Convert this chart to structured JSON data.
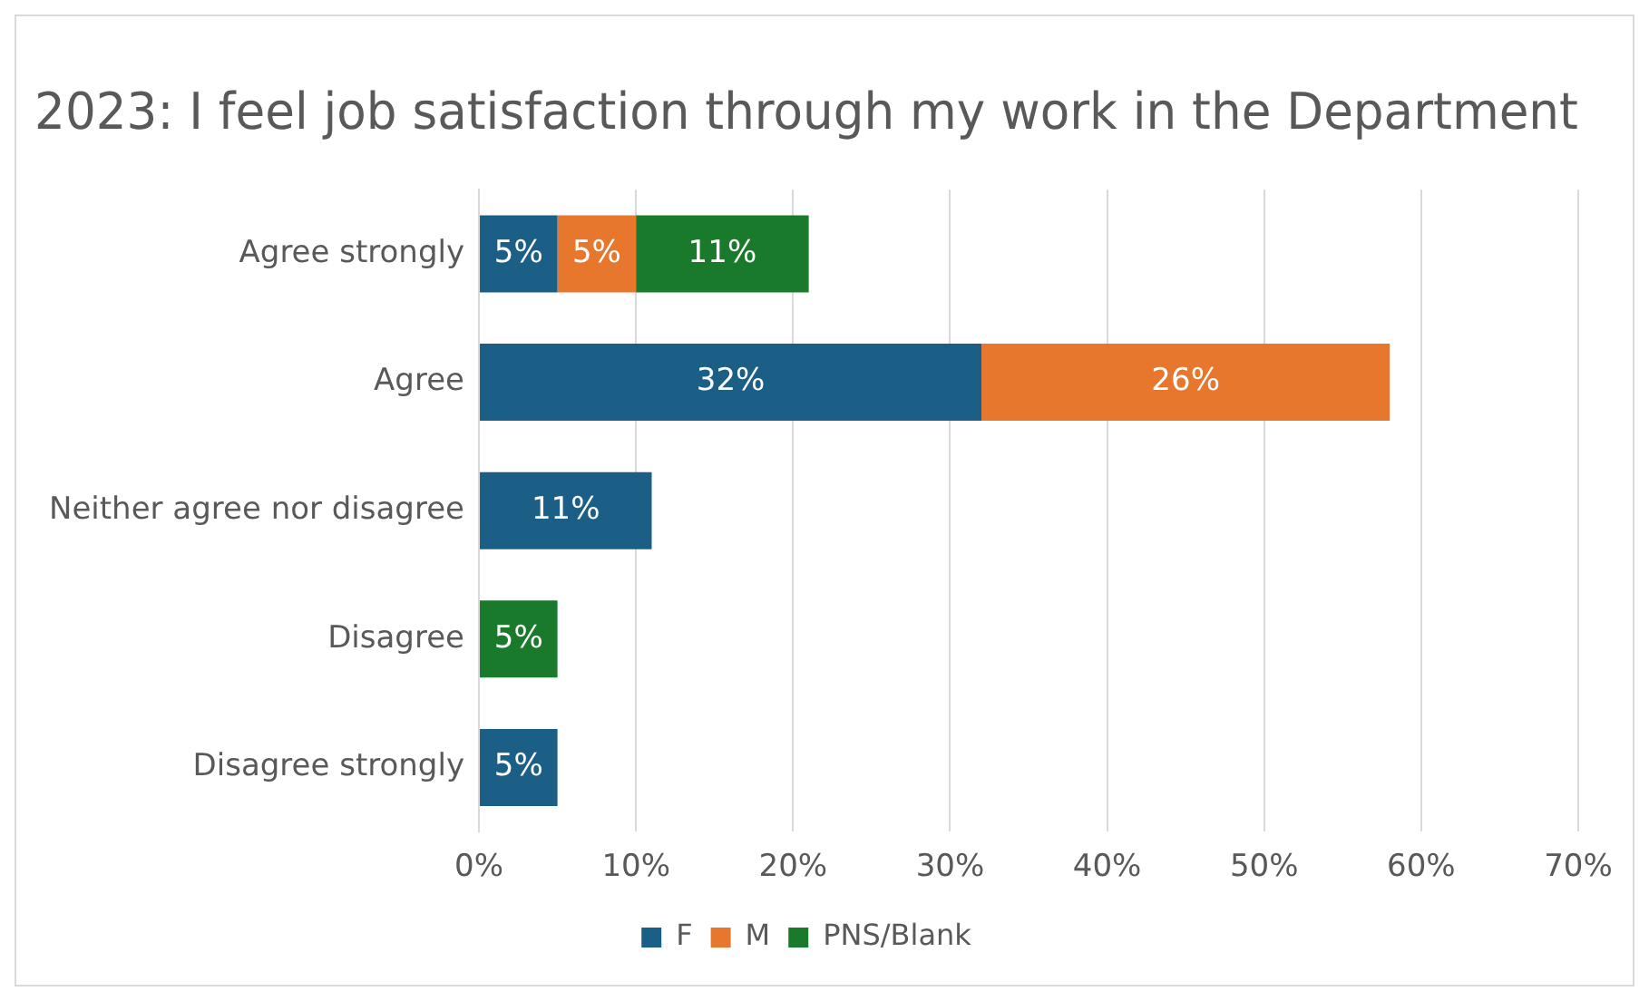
{
  "chart_data": {
    "type": "bar",
    "title": "2023: I feel job satisfaction through my work in the Department",
    "orientation": "horizontal",
    "stacked": true,
    "categories": [
      "Agree strongly",
      "Agree",
      "Neither agree nor disagree",
      "Disagree",
      "Disagree strongly"
    ],
    "series": [
      {
        "name": "F",
        "color": "#1b5e86",
        "values": [
          5,
          32,
          11,
          null,
          5
        ],
        "value_labels": [
          "5%",
          "32%",
          "11%",
          null,
          "5%"
        ]
      },
      {
        "name": "M",
        "color": "#e8772e",
        "values": [
          5,
          26,
          null,
          null,
          null
        ],
        "value_labels": [
          "5%",
          "26%",
          null,
          null,
          null
        ]
      },
      {
        "name": "PNS/Blank",
        "color": "#1a7a2c",
        "values": [
          11,
          null,
          null,
          5,
          null
        ],
        "value_labels": [
          "11%",
          null,
          null,
          "5%",
          null
        ]
      }
    ],
    "xlim": [
      0,
      70
    ],
    "xticks": [
      {
        "value": 0,
        "label": "0%"
      },
      {
        "value": 10,
        "label": "10%"
      },
      {
        "value": 20,
        "label": "20%"
      },
      {
        "value": 30,
        "label": "30%"
      },
      {
        "value": 40,
        "label": "40%"
      },
      {
        "value": 50,
        "label": "50%"
      },
      {
        "value": 60,
        "label": "60%"
      },
      {
        "value": 70,
        "label": "70%"
      }
    ],
    "grid": "x",
    "legend": "bottom"
  }
}
